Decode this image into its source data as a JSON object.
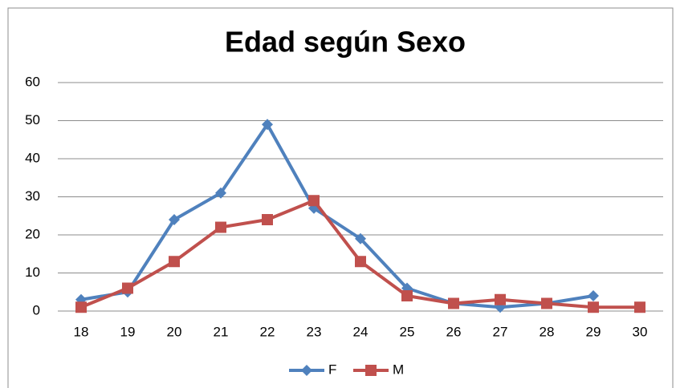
{
  "chart_data": {
    "type": "line",
    "title": "Edad según Sexo",
    "categories": [
      "18",
      "19",
      "20",
      "21",
      "22",
      "23",
      "24",
      "25",
      "26",
      "27",
      "28",
      "29",
      "30"
    ],
    "series": [
      {
        "name": "F",
        "color": "#4f81bd",
        "marker": "diamond",
        "values": [
          3,
          5,
          24,
          31,
          49,
          27,
          19,
          6,
          2,
          1,
          2,
          4,
          null
        ]
      },
      {
        "name": "M",
        "color": "#c0504d",
        "marker": "square",
        "values": [
          1,
          6,
          13,
          22,
          24,
          29,
          13,
          4,
          2,
          3,
          2,
          1,
          1
        ]
      }
    ],
    "ylim": [
      0,
      60
    ],
    "yticks": [
      0,
      10,
      20,
      30,
      40,
      50,
      60
    ],
    "grid": true,
    "legend": "bottom"
  }
}
